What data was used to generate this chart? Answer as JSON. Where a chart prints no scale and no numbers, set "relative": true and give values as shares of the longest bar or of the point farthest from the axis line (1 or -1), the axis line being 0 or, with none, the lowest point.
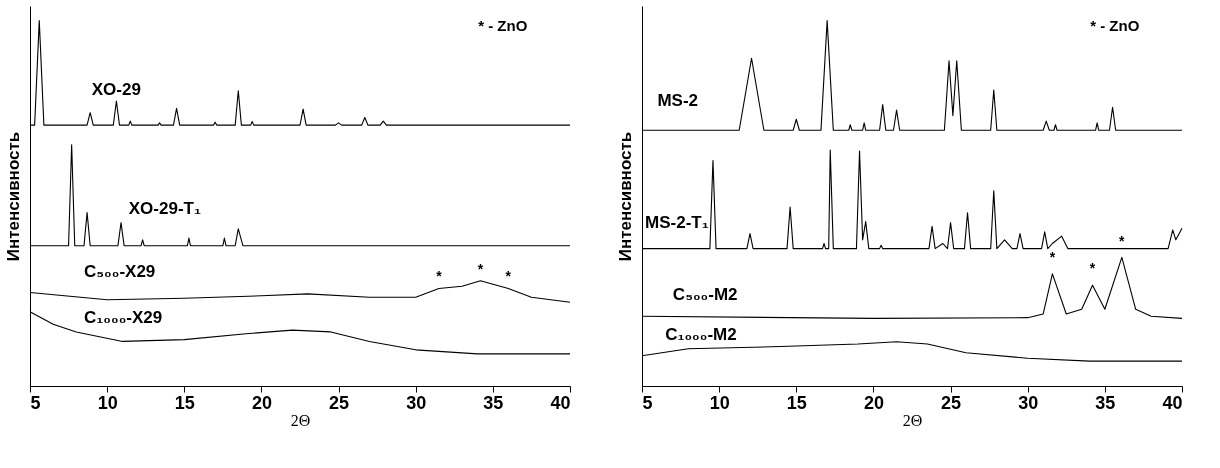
{
  "chart_data": [
    {
      "type": "line",
      "relative": true,
      "xlabel": "2Θ",
      "ylabel": "Интенсивность",
      "xlim": [
        5,
        40
      ],
      "xticks": [
        5,
        10,
        15,
        20,
        25,
        30,
        35,
        40
      ],
      "grid": false,
      "legend": false,
      "line_style": "solid",
      "marker": "none",
      "annotations": [
        "* - ZnO",
        {
          "text": "*",
          "x": 31.5,
          "y": 0.267
        },
        {
          "text": "*",
          "x": 34.2,
          "y": 0.288
        },
        {
          "text": "*",
          "x": 36,
          "y": 0.267
        }
      ],
      "series": [
        {
          "name": "XO-29",
          "color": "#000000",
          "x": [
            5.0,
            5.3,
            5.6,
            5.9,
            8.7,
            8.9,
            9.1,
            10.4,
            10.6,
            10.8,
            11.4,
            11.5,
            11.6,
            13.3,
            13.4,
            13.5,
            14.3,
            14.5,
            14.7,
            16.9,
            17.0,
            17.1,
            18.3,
            18.5,
            18.7,
            19.3,
            19.4,
            19.5,
            22.5,
            22.7,
            22.9,
            24.8,
            25.0,
            25.2,
            26.5,
            26.7,
            26.9,
            27.7,
            27.9,
            28.1,
            40
          ],
          "values": [
            0.714,
            0.714,
            1.0,
            0.714,
            0.714,
            0.748,
            0.714,
            0.714,
            0.78,
            0.714,
            0.714,
            0.725,
            0.714,
            0.714,
            0.72,
            0.714,
            0.714,
            0.76,
            0.714,
            0.714,
            0.722,
            0.714,
            0.714,
            0.808,
            0.714,
            0.714,
            0.724,
            0.714,
            0.714,
            0.758,
            0.714,
            0.714,
            0.72,
            0.714,
            0.714,
            0.735,
            0.714,
            0.714,
            0.725,
            0.714,
            0.714
          ]
        },
        {
          "name": "XO-29-T₁",
          "color": "#000000",
          "x": [
            5,
            7.5,
            7.7,
            7.9,
            8.5,
            8.7,
            8.9,
            10.7,
            10.9,
            11.1,
            12.2,
            12.3,
            12.4,
            15.2,
            15.3,
            15.4,
            17.5,
            17.6,
            17.7,
            18.3,
            18.5,
            18.8,
            40
          ],
          "values": [
            0.384,
            0.384,
            0.66,
            0.384,
            0.384,
            0.475,
            0.384,
            0.384,
            0.447,
            0.384,
            0.384,
            0.4,
            0.384,
            0.384,
            0.405,
            0.384,
            0.384,
            0.405,
            0.384,
            0.384,
            0.43,
            0.384,
            0.384
          ]
        },
        {
          "name": "C₅₀₀-X29",
          "color": "#000000",
          "x": [
            5,
            10,
            15,
            20,
            23,
            27,
            30,
            31.5,
            33,
            34.2,
            36,
            37.5,
            40
          ],
          "values": [
            0.256,
            0.236,
            0.24,
            0.247,
            0.252,
            0.243,
            0.243,
            0.267,
            0.273,
            0.288,
            0.267,
            0.243,
            0.229
          ]
        },
        {
          "name": "C₁₀₀₀-X29",
          "color": "#000000",
          "x": [
            5,
            6.5,
            8,
            11,
            15,
            19,
            22,
            24.5,
            27,
            30,
            34,
            40
          ],
          "values": [
            0.203,
            0.169,
            0.148,
            0.122,
            0.127,
            0.143,
            0.153,
            0.148,
            0.122,
            0.099,
            0.088,
            0.088
          ]
        }
      ]
    },
    {
      "type": "line",
      "relative": true,
      "xlabel": "2Θ",
      "ylabel": "Интенсивность",
      "xlim": [
        5,
        40
      ],
      "xticks": [
        5,
        10,
        15,
        20,
        25,
        30,
        35,
        40
      ],
      "grid": false,
      "legend": false,
      "line_style": "solid",
      "marker": "none",
      "annotations": [
        "* - ZnO",
        {
          "text": "*",
          "x": 31.6,
          "y": 0.32
        },
        {
          "text": "*",
          "x": 34.2,
          "y": 0.29
        },
        {
          "text": "*",
          "x": 36.1,
          "y": 0.365
        }
      ],
      "series": [
        {
          "name": "MS-2",
          "color": "#000000",
          "x": [
            5,
            11.3,
            12.1,
            12.9,
            14.8,
            15.0,
            15.2,
            16.6,
            17.0,
            17.4,
            18.4,
            18.5,
            18.6,
            19.3,
            19.4,
            19.5,
            20.4,
            20.6,
            20.8,
            21.3,
            21.5,
            21.7,
            24.6,
            24.9,
            25.15,
            25.4,
            25.7,
            27.6,
            27.8,
            28.0,
            31.0,
            31.2,
            31.4,
            31.7,
            31.8,
            31.9,
            34.4,
            34.5,
            34.6,
            35.3,
            35.5,
            35.7,
            40
          ],
          "values": [
            0.7,
            0.7,
            0.897,
            0.7,
            0.7,
            0.73,
            0.7,
            0.7,
            1.0,
            0.7,
            0.7,
            0.715,
            0.7,
            0.7,
            0.72,
            0.7,
            0.7,
            0.77,
            0.7,
            0.7,
            0.755,
            0.7,
            0.7,
            0.89,
            0.74,
            0.89,
            0.7,
            0.7,
            0.81,
            0.7,
            0.7,
            0.725,
            0.7,
            0.7,
            0.715,
            0.7,
            0.7,
            0.72,
            0.7,
            0.7,
            0.763,
            0.7,
            0.7
          ]
        },
        {
          "name": "MS-2-T₁",
          "color": "#000000",
          "x": [
            5,
            9.4,
            9.6,
            9.8,
            11.8,
            12.0,
            12.2,
            14.4,
            14.6,
            14.8,
            16.7,
            16.8,
            16.9,
            17.1,
            17.2,
            17.4,
            18.9,
            19.1,
            19.3,
            19.5,
            19.7,
            20.4,
            20.5,
            20.6,
            23.6,
            23.8,
            24.0,
            24.5,
            24.8,
            25.0,
            25.2,
            25.9,
            26.1,
            26.3,
            27.6,
            27.8,
            28.0,
            28.5,
            29.0,
            29.3,
            29.5,
            29.7,
            30.9,
            31.1,
            31.3,
            31.6,
            32.2,
            32.6,
            39.1,
            39.4,
            39.6,
            40
          ],
          "values": [
            0.376,
            0.376,
            0.617,
            0.376,
            0.376,
            0.417,
            0.376,
            0.376,
            0.49,
            0.376,
            0.376,
            0.39,
            0.376,
            0.376,
            0.646,
            0.376,
            0.376,
            0.643,
            0.4,
            0.45,
            0.376,
            0.376,
            0.385,
            0.376,
            0.376,
            0.437,
            0.376,
            0.39,
            0.376,
            0.447,
            0.376,
            0.376,
            0.474,
            0.376,
            0.376,
            0.534,
            0.376,
            0.4,
            0.376,
            0.376,
            0.417,
            0.376,
            0.376,
            0.422,
            0.376,
            0.39,
            0.41,
            0.376,
            0.376,
            0.427,
            0.4,
            0.432
          ]
        },
        {
          "name": "C₅₀₀-M2",
          "color": "#000000",
          "x": [
            5,
            20,
            30,
            31,
            31.6,
            32.5,
            33.5,
            34.2,
            35.0,
            36.1,
            37.0,
            38,
            40
          ],
          "values": [
            0.191,
            0.185,
            0.187,
            0.197,
            0.307,
            0.197,
            0.21,
            0.276,
            0.21,
            0.352,
            0.21,
            0.191,
            0.185
          ]
        },
        {
          "name": "C₁₀₀₀-M2",
          "color": "#000000",
          "x": [
            5,
            8,
            14,
            19,
            21.5,
            23.5,
            26,
            30,
            34,
            40
          ],
          "values": [
            0.083,
            0.102,
            0.108,
            0.115,
            0.121,
            0.115,
            0.091,
            0.076,
            0.068,
            0.068
          ]
        }
      ]
    }
  ]
}
